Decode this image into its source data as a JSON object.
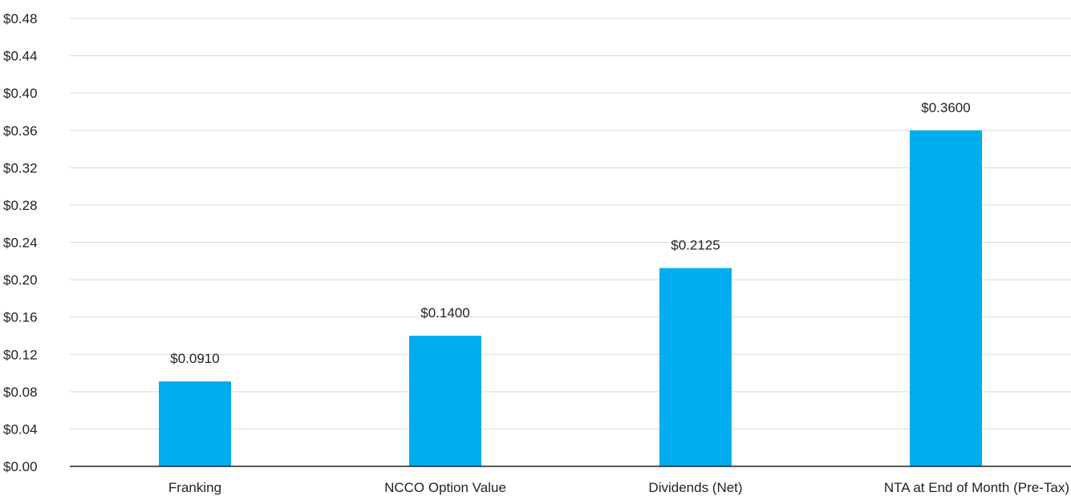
{
  "chart_data": {
    "type": "bar",
    "categories": [
      "Franking",
      "NCCO Option Value",
      "Dividends (Net)",
      "NTA at End of Month (Pre-Tax)"
    ],
    "values": [
      0.091,
      0.14,
      0.2125,
      0.36
    ],
    "data_labels": [
      "$0.0910",
      "$0.1400",
      "$0.2125",
      "$0.3600"
    ],
    "yticks": [
      0.0,
      0.04,
      0.08,
      0.12,
      0.16,
      0.2,
      0.24,
      0.28,
      0.32,
      0.36,
      0.4,
      0.44,
      0.48
    ],
    "ytick_labels": [
      "$0.00",
      "$0.04",
      "$0.08",
      "$0.12",
      "$0.16",
      "$0.20",
      "$0.24",
      "$0.28",
      "$0.32",
      "$0.36",
      "$0.40",
      "$0.44",
      "$0.48"
    ],
    "ylim": [
      0,
      0.48
    ],
    "title": "",
    "xlabel": "",
    "ylabel": "",
    "grid": true,
    "legend": "none",
    "bar_color": "#00adef"
  }
}
